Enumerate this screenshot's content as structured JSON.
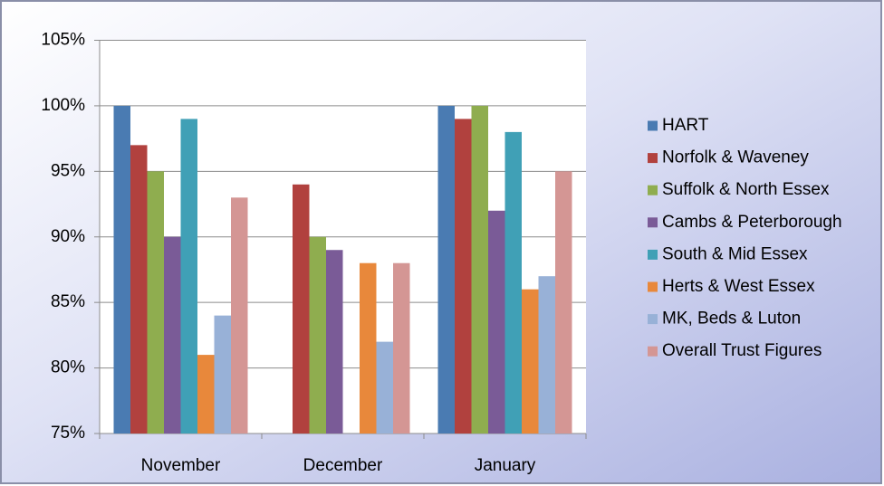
{
  "chart_data": {
    "type": "bar",
    "categories": [
      "November",
      "December",
      "January"
    ],
    "series": [
      {
        "name": "HART",
        "color": "#4a7bb2",
        "values": [
          100,
          null,
          100
        ]
      },
      {
        "name": "Norfolk & Waveney",
        "color": "#b1413e",
        "values": [
          97,
          94,
          99
        ]
      },
      {
        "name": "Suffolk & North Essex",
        "color": "#8fad4f",
        "values": [
          95,
          90,
          100
        ]
      },
      {
        "name": "Cambs & Peterborough",
        "color": "#7a5b97",
        "values": [
          90,
          89,
          92
        ]
      },
      {
        "name": "South & Mid Essex",
        "color": "#40a0b6",
        "values": [
          99,
          null,
          98
        ]
      },
      {
        "name": "Herts & West Essex",
        "color": "#e8883b",
        "values": [
          81,
          88,
          86
        ]
      },
      {
        "name": "MK, Beds & Luton",
        "color": "#98b1d7",
        "values": [
          84,
          82,
          87
        ]
      },
      {
        "name": "Overall Trust Figures",
        "color": "#d49694",
        "values": [
          93,
          88,
          95
        ]
      }
    ],
    "ylim": [
      75,
      105
    ],
    "yticks": [
      {
        "value": 75,
        "label": "75%"
      },
      {
        "value": 80,
        "label": "80%"
      },
      {
        "value": 85,
        "label": "85%"
      },
      {
        "value": 90,
        "label": "90%"
      },
      {
        "value": 95,
        "label": "95%"
      },
      {
        "value": 100,
        "label": "100%"
      },
      {
        "value": 105,
        "label": "105%"
      }
    ],
    "grid": true,
    "legend": "right"
  }
}
